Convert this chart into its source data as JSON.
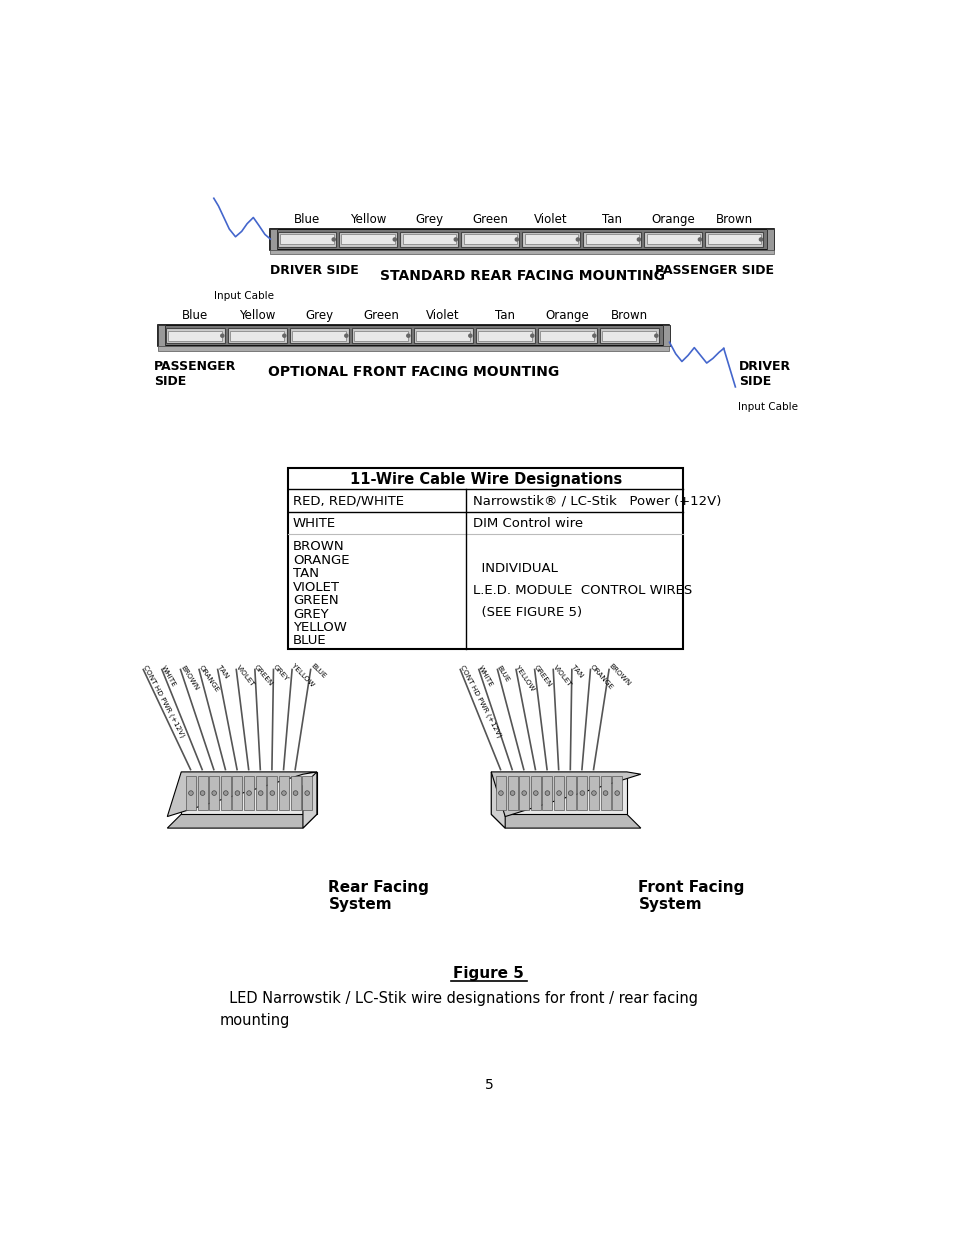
{
  "page_bg": "#ffffff",
  "title_color": "#000000",
  "bar_labels_rear": [
    "Blue",
    "Yellow",
    "Grey",
    "Green",
    "Violet",
    "Tan",
    "Orange",
    "Brown"
  ],
  "rear_driver_side": "DRIVER SIDE",
  "rear_passenger_side": "PASSENGER SIDE",
  "rear_title": "STANDARD REAR FACING MOUNTING",
  "rear_input_cable": "Input Cable",
  "bar_labels_front": [
    "Blue",
    "Yellow",
    "Grey",
    "Green",
    "Violet",
    "Tan",
    "Orange",
    "Brown"
  ],
  "front_passenger_side": "PASSENGER\nSIDE",
  "front_driver_side": "DRIVER\nSIDE",
  "front_title": "OPTIONAL FRONT FACING MOUNTING",
  "front_input_cable": "Input Cable",
  "table_title": "11-Wire Cable Wire Designations",
  "table_row1_col1": "RED, RED/WHITE",
  "table_row1_col2": "Narrowstik® / LC-Stik   Power (+12V)",
  "table_row2_col1": "WHITE",
  "table_row2_col2": "DIM Control wire",
  "table_left_col": [
    "BROWN",
    "ORANGE",
    "TAN",
    "VIOLET",
    "GREEN",
    "GREY",
    "YELLOW",
    "BLUE"
  ],
  "table_right_text": "  INDIVIDUAL\nL.E.D. MODULE  CONTROL WIRES\n  (SEE FIGURE 5)",
  "rear_system_label": "Rear Facing\nSystem",
  "front_system_label": "Front Facing\nSystem",
  "rear_wires": [
    "CONT HD PWR (+12V)",
    "WHITE",
    "BROWN",
    "ORANGE",
    "TAN",
    "VIOLET",
    "GREEN",
    "GREY",
    "YELLOW",
    "BLUE"
  ],
  "front_wires": [
    "CONT HD PWR (+12V)",
    "WHITE",
    "BLUE",
    "YELLOW",
    "GREEN",
    "VIOLET",
    "TAN",
    "ORANGE",
    "BROWN"
  ],
  "figure_label": "Figure 5",
  "figure_caption": "  LED Narrowstik / LC-Stik wire designations for front / rear facing\nmounting",
  "page_number": "5"
}
